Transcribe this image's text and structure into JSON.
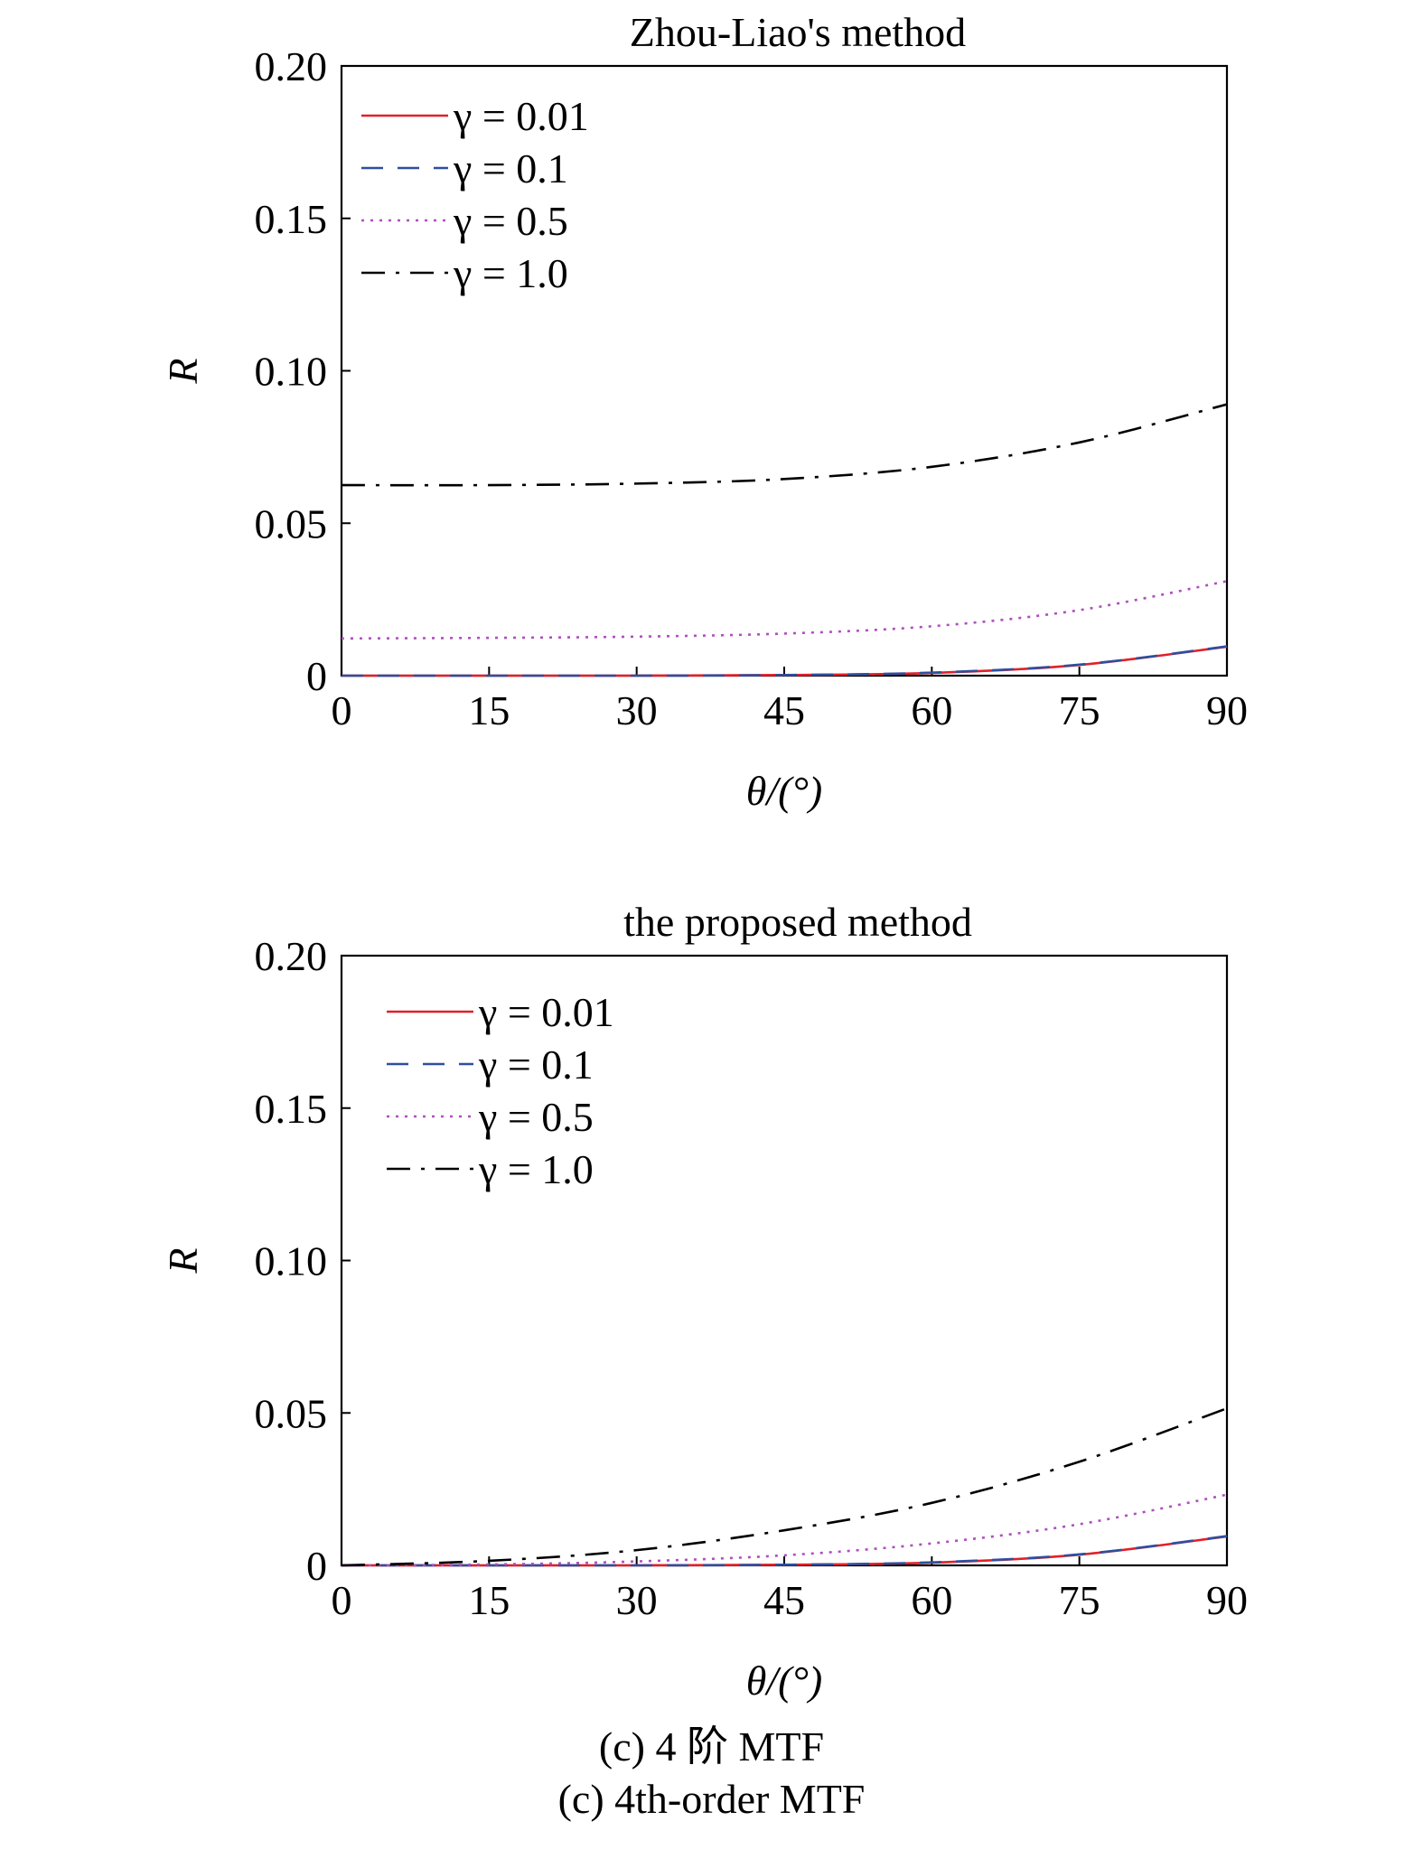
{
  "chart_data": [
    {
      "type": "line",
      "title": "Zhou-Liao's method",
      "xlabel": "θ/(°)",
      "ylabel": "R",
      "xlim": [
        0,
        90
      ],
      "ylim": [
        0,
        0.2
      ],
      "xticks": [
        "0",
        "15",
        "30",
        "45",
        "60",
        "75",
        "90"
      ],
      "yticks": [
        "0",
        "0.05",
        "0.10",
        "0.15",
        "0.20"
      ],
      "grid": false,
      "legend_position": "top-left",
      "x": [
        0,
        15,
        30,
        45,
        60,
        75,
        90
      ],
      "series": [
        {
          "name": "γ = 0.01",
          "color": "#e0202a",
          "dash": "solid",
          "values": [
            0.0,
            0.0,
            0.0,
            0.0002,
            0.0009,
            0.0035,
            0.0095
          ]
        },
        {
          "name": "γ = 0.1",
          "color": "#2e4f9e",
          "dash": "dash",
          "values": [
            0.0,
            0.0,
            0.0,
            0.0002,
            0.001,
            0.0036,
            0.0096
          ]
        },
        {
          "name": "γ = 0.5",
          "color": "#b04ec0",
          "dash": "dot",
          "values": [
            0.0122,
            0.0124,
            0.0128,
            0.0138,
            0.0162,
            0.0215,
            0.031
          ]
        },
        {
          "name": "γ = 1.0",
          "color": "#000000",
          "dash": "dashdot",
          "values": [
            0.0625,
            0.0625,
            0.063,
            0.0645,
            0.0685,
            0.0765,
            0.089
          ]
        }
      ]
    },
    {
      "type": "line",
      "title": "the proposed method",
      "xlabel": "θ/(°)",
      "ylabel": "R",
      "xlim": [
        0,
        90
      ],
      "ylim": [
        0,
        0.2
      ],
      "xticks": [
        "0",
        "15",
        "30",
        "45",
        "60",
        "75",
        "90"
      ],
      "yticks": [
        "0",
        "0.05",
        "0.10",
        "0.15",
        "0.20"
      ],
      "grid": false,
      "legend_position": "top-left",
      "x": [
        0,
        15,
        30,
        45,
        60,
        75,
        90
      ],
      "series": [
        {
          "name": "γ = 0.01",
          "color": "#e0202a",
          "dash": "solid",
          "values": [
            0.0,
            0.0,
            0.0,
            0.0002,
            0.0009,
            0.0035,
            0.0095
          ]
        },
        {
          "name": "γ = 0.1",
          "color": "#2e4f9e",
          "dash": "dash",
          "values": [
            0.0,
            0.0,
            0.0,
            0.0002,
            0.001,
            0.0036,
            0.0096
          ]
        },
        {
          "name": "γ = 0.5",
          "color": "#b04ec0",
          "dash": "dot",
          "values": [
            0.0,
            0.0003,
            0.0013,
            0.0033,
            0.0072,
            0.0135,
            0.0232
          ]
        },
        {
          "name": "γ = 1.0",
          "color": "#000000",
          "dash": "dashdot",
          "values": [
            0.0,
            0.0015,
            0.005,
            0.0115,
            0.0205,
            0.034,
            0.0515
          ]
        }
      ]
    }
  ],
  "caption": {
    "line1": "(c) 4 阶 MTF",
    "line2": "(c) 4th-order MTF"
  }
}
